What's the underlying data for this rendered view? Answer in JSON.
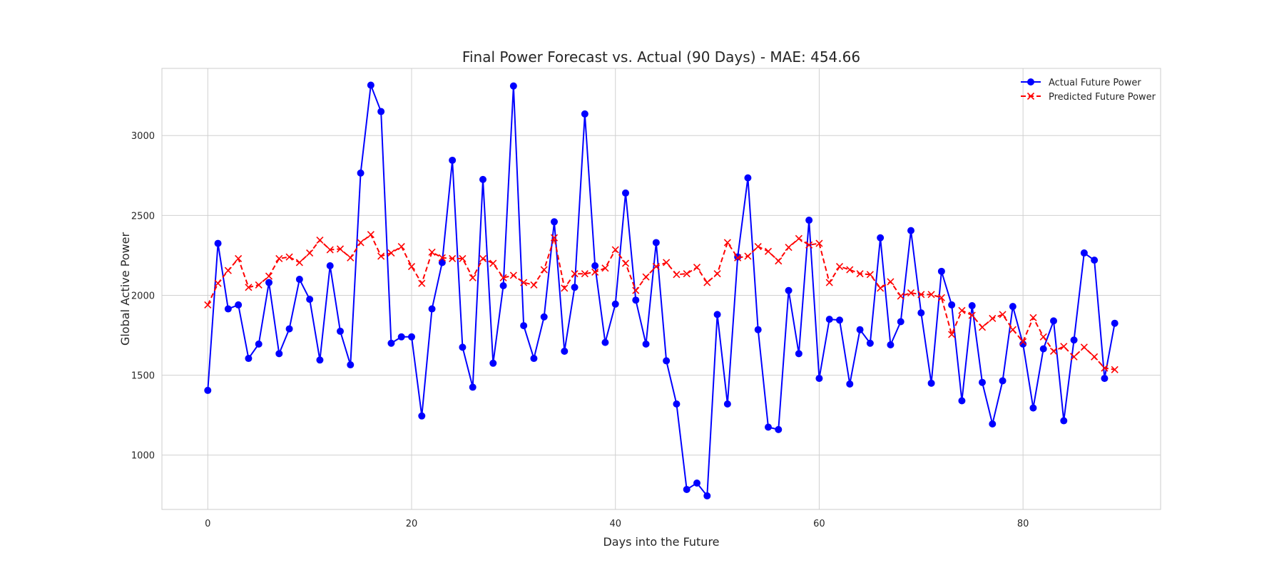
{
  "chart_data": {
    "type": "line",
    "title": "Final Power Forecast vs. Actual (90 Days) - MAE: 454.66",
    "xlabel": "Days into the Future",
    "ylabel": "Global Active Power",
    "xlim": [
      -4.5,
      93.5
    ],
    "ylim": [
      660,
      3420
    ],
    "xticks": [
      0,
      20,
      40,
      60,
      80
    ],
    "yticks": [
      1000,
      1500,
      2000,
      2500,
      3000
    ],
    "grid": true,
    "legend_position": "top-right",
    "x": [
      0,
      1,
      2,
      3,
      4,
      5,
      6,
      7,
      8,
      9,
      10,
      11,
      12,
      13,
      14,
      15,
      16,
      17,
      18,
      19,
      20,
      21,
      22,
      23,
      24,
      25,
      26,
      27,
      28,
      29,
      30,
      31,
      32,
      33,
      34,
      35,
      36,
      37,
      38,
      39,
      40,
      41,
      42,
      43,
      44,
      45,
      46,
      47,
      48,
      49,
      50,
      51,
      52,
      53,
      54,
      55,
      56,
      57,
      58,
      59,
      60,
      61,
      62,
      63,
      64,
      65,
      66,
      67,
      68,
      69,
      70,
      71,
      72,
      73,
      74,
      75,
      76,
      77,
      78,
      79,
      80,
      81,
      82,
      83,
      84,
      85,
      86,
      87,
      88,
      89
    ],
    "series": [
      {
        "name": "Actual Future Power",
        "color": "#0000ff",
        "line_style": "solid",
        "marker": "circle",
        "values": [
          1405,
          2325,
          1915,
          1940,
          1605,
          1695,
          2080,
          1635,
          1790,
          2100,
          1975,
          1595,
          2185,
          1775,
          1565,
          2765,
          3315,
          3150,
          1700,
          1740,
          1740,
          1245,
          1915,
          2205,
          2845,
          1675,
          1425,
          2725,
          1575,
          2060,
          3310,
          1810,
          1605,
          1865,
          2460,
          1650,
          2050,
          3135,
          2185,
          1705,
          1945,
          2640,
          1970,
          1695,
          2330,
          1590,
          1320,
          785,
          825,
          745,
          1880,
          1320,
          2240,
          2735,
          1785,
          1175,
          1160,
          2030,
          1635,
          2470,
          1480,
          1850,
          1845,
          1445,
          1785,
          1700,
          2360,
          1690,
          1835,
          2405,
          1890,
          1450,
          2150,
          1940,
          1340,
          1935,
          1455,
          1195,
          1465,
          1930,
          1695,
          1295,
          1665,
          1840,
          1215,
          1720,
          2265,
          2220,
          1480,
          1825
        ]
      },
      {
        "name": "Predicted Future Power",
        "color": "#ff0000",
        "line_style": "dashed",
        "marker": "x",
        "values": [
          1940,
          2075,
          2155,
          2230,
          2050,
          2065,
          2120,
          2230,
          2240,
          2205,
          2265,
          2345,
          2285,
          2290,
          2235,
          2330,
          2380,
          2245,
          2265,
          2305,
          2180,
          2075,
          2270,
          2235,
          2230,
          2230,
          2110,
          2230,
          2200,
          2110,
          2125,
          2080,
          2065,
          2160,
          2360,
          2045,
          2135,
          2135,
          2145,
          2170,
          2285,
          2200,
          2030,
          2115,
          2180,
          2205,
          2130,
          2135,
          2175,
          2080,
          2135,
          2330,
          2235,
          2245,
          2305,
          2275,
          2215,
          2300,
          2355,
          2315,
          2325,
          2080,
          2180,
          2160,
          2135,
          2130,
          2045,
          2085,
          1995,
          2015,
          2005,
          2005,
          1985,
          1755,
          1905,
          1875,
          1800,
          1855,
          1880,
          1785,
          1710,
          1860,
          1740,
          1650,
          1680,
          1615,
          1675,
          1615,
          1545,
          1535
        ]
      }
    ]
  }
}
